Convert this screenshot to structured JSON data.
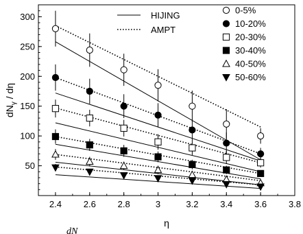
{
  "chart_data": {
    "type": "scatter",
    "xlabel": "η",
    "ylabel": "dN",
    "ylabel_sub": "γ",
    "ylabel_rest": " / dη",
    "bottom_fragment": "dN",
    "xlim": [
      2.3,
      3.8
    ],
    "ylim": [
      0,
      320
    ],
    "x_ticks": [
      2.4,
      2.6,
      2.8,
      3.0,
      3.2,
      3.4,
      3.6,
      3.8
    ],
    "x_tick_labels": [
      "2.4",
      "2.6",
      "2.8",
      "3",
      "3.2",
      "3.4",
      "3.6",
      "3.8"
    ],
    "y_ticks": [
      50,
      100,
      150,
      200,
      250,
      300
    ],
    "y_tick_labels": [
      "50",
      "100",
      "150",
      "200",
      "250",
      "300"
    ],
    "model_legend": [
      {
        "name": "HIJING",
        "style": "solid"
      },
      {
        "name": "AMPT",
        "style": "dotted"
      }
    ],
    "x": [
      2.4,
      2.6,
      2.8,
      3.0,
      3.2,
      3.4,
      3.6
    ],
    "series": [
      {
        "name": "0-5%",
        "marker": "circle-open",
        "values": [
          280,
          244,
          211,
          185,
          150,
          120,
          100
        ],
        "errors": [
          30,
          28,
          27,
          27,
          26,
          25,
          13
        ],
        "hijing": [
          258,
          60
        ],
        "ampt": [
          285,
          115
        ]
      },
      {
        "name": "10-20%",
        "marker": "circle-filled",
        "values": [
          198,
          175,
          150,
          135,
          110,
          88,
          70
        ],
        "errors": [
          22,
          21,
          20,
          20,
          18,
          18,
          10
        ],
        "hijing": [
          172,
          58
        ],
        "ampt": [
          198,
          70
        ]
      },
      {
        "name": "20-30%",
        "marker": "square-open",
        "values": [
          146,
          130,
          113,
          90,
          80,
          64,
          55
        ],
        "errors": [
          15,
          14,
          14,
          13,
          12,
          11,
          8
        ],
        "hijing": [
          122,
          40
        ],
        "ampt": [
          147,
          55
        ]
      },
      {
        "name": "30-40%",
        "marker": "square-filled",
        "values": [
          99,
          85,
          75,
          65,
          52,
          43,
          37
        ],
        "errors": [
          12,
          10,
          10,
          9,
          8,
          7,
          5
        ],
        "hijing": [
          86,
          28
        ],
        "ampt": [
          99,
          37
        ]
      },
      {
        "name": "40-50%",
        "marker": "triangle-up-open",
        "values": [
          69,
          57,
          50,
          43,
          35,
          27,
          21
        ],
        "errors": [
          9,
          8,
          7,
          7,
          6,
          5,
          4
        ],
        "hijing": [
          56,
          18
        ],
        "ampt": [
          69,
          25
        ]
      },
      {
        "name": "50-60%",
        "marker": "triangle-down-filled",
        "values": [
          47,
          40,
          34,
          29,
          25,
          19,
          15
        ],
        "errors": [
          6,
          5,
          5,
          5,
          4,
          4,
          3
        ],
        "hijing": [
          35,
          12
        ],
        "ampt": [
          48,
          18
        ]
      }
    ]
  }
}
